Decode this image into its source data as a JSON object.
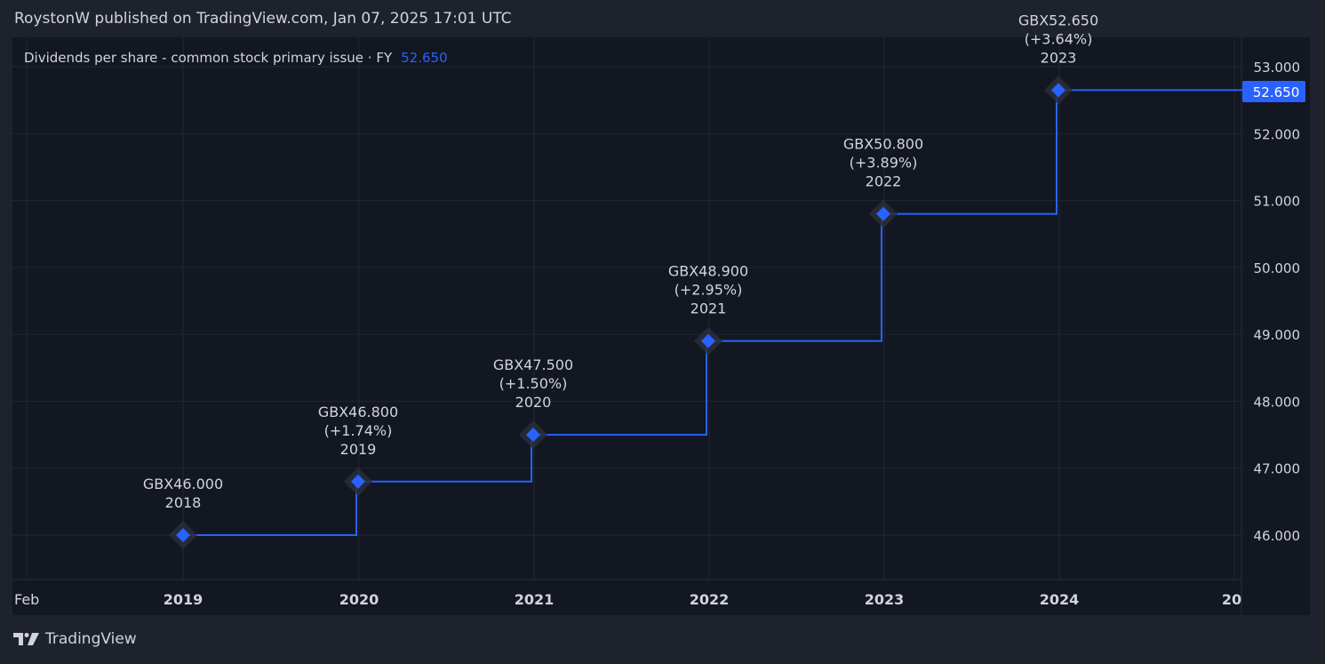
{
  "header": {
    "publisher_line": "RoystonW published on TradingView.com, Jan 07, 2025 17:01 UTC"
  },
  "footer": {
    "brand": "TradingView"
  },
  "colors": {
    "background": "#1e222d",
    "plot_background": "#131722",
    "grid": "#232733",
    "line": "#2962ff",
    "text": "#d1d4dc",
    "legend_value": "#2962ff"
  },
  "chart_data": {
    "type": "line",
    "step": true,
    "legend": {
      "title": "Dividends per share - common stock primary issue · FY",
      "value": "52.650"
    },
    "series": [
      {
        "x": [
          2018,
          2019,
          2020,
          2021,
          2022,
          2023
        ],
        "values": [
          46.0,
          46.8,
          47.5,
          48.9,
          50.8,
          52.65
        ]
      }
    ],
    "data_labels": [
      {
        "value": "GBX46.000",
        "change": "",
        "year": "2018"
      },
      {
        "value": "GBX46.800",
        "change": "(+1.74%)",
        "year": "2019"
      },
      {
        "value": "GBX47.500",
        "change": "(+1.50%)",
        "year": "2020"
      },
      {
        "value": "GBX48.900",
        "change": "(+2.95%)",
        "year": "2021"
      },
      {
        "value": "GBX50.800",
        "change": "(+3.89%)",
        "year": "2022"
      },
      {
        "value": "GBX52.650",
        "change": "(+3.64%)",
        "year": "2023"
      }
    ],
    "last_value_label": "52.650",
    "y_ticks": [
      "53.000",
      "52.000",
      "51.000",
      "50.000",
      "49.000",
      "48.000",
      "47.000",
      "46.000"
    ],
    "y_tick_values": [
      53,
      52,
      51,
      50,
      49,
      48,
      47,
      46
    ],
    "x_ticks": [
      "Feb",
      "2019",
      "2020",
      "2021",
      "2022",
      "2023",
      "2024",
      "20"
    ],
    "ylim": [
      45.5,
      53.25
    ],
    "grid": true
  }
}
